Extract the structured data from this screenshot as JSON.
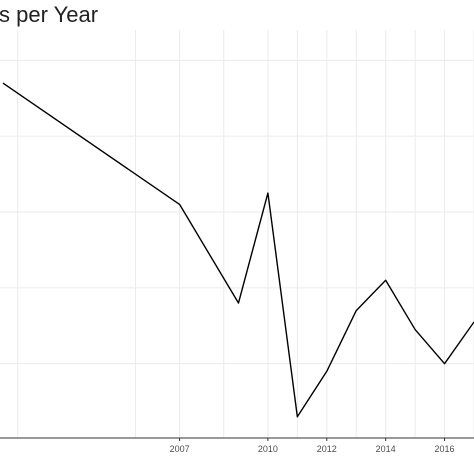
{
  "chart_data": {
    "type": "line",
    "title": "s per Year",
    "xlabel": "",
    "ylabel": "",
    "x_ticks": [
      "2007",
      "2010",
      "2012",
      "2014",
      "2016"
    ],
    "x": [
      2001,
      2007,
      2009,
      2010,
      2011,
      2012,
      2013,
      2014,
      2015,
      2016,
      2017
    ],
    "values": [
      100,
      84,
      71,
      85.5,
      56,
      62,
      70,
      74,
      67.5,
      63,
      68.5
    ],
    "xlim": [
      2000.9,
      2017
    ],
    "ylim": [
      53.2,
      107
    ],
    "grid": true,
    "legend": "none",
    "line_color": "#000000",
    "grid_color": "#ebebeb"
  }
}
